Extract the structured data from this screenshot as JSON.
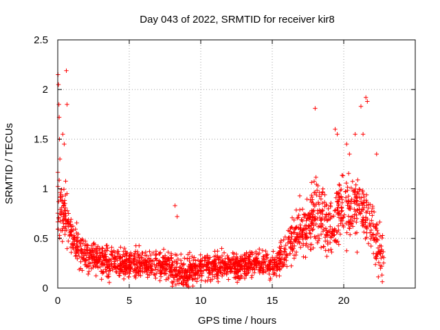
{
  "chart_data": {
    "type": "scatter",
    "title": "Day 043 of 2022, SRMTID for receiver kir8",
    "xlabel": "GPS time / hours",
    "ylabel": "SRMTID / TECUs",
    "xlim": [
      0,
      25
    ],
    "ylim": [
      0,
      2.5
    ],
    "xticks": [
      0,
      5,
      10,
      15,
      20
    ],
    "xtick_labels": [
      "0",
      "5",
      "10",
      "15",
      "20"
    ],
    "yticks": [
      0,
      0.5,
      1,
      1.5,
      2,
      2.5
    ],
    "ytick_labels": [
      "0",
      "0.5",
      "1",
      "1.5",
      "2",
      "2.5"
    ],
    "grid": true,
    "marker": "+",
    "color": "#ff0000",
    "trend": {
      "x": [
        0.0,
        0.2,
        0.5,
        0.8,
        1.0,
        1.5,
        2.0,
        3.0,
        4.0,
        5.0,
        6.0,
        7.0,
        8.0,
        9.0,
        9.5,
        10.0,
        11.0,
        12.0,
        13.0,
        14.0,
        15.0,
        15.5,
        16.0,
        16.5,
        17.0,
        17.5,
        18.0,
        18.5,
        19.0,
        19.5,
        20.0,
        20.5,
        21.0,
        21.5,
        22.0,
        22.5,
        22.8
      ],
      "y": [
        0.85,
        0.8,
        0.75,
        0.6,
        0.5,
        0.38,
        0.32,
        0.28,
        0.24,
        0.25,
        0.25,
        0.24,
        0.2,
        0.15,
        0.18,
        0.22,
        0.22,
        0.22,
        0.23,
        0.25,
        0.22,
        0.3,
        0.4,
        0.5,
        0.58,
        0.65,
        0.75,
        0.72,
        0.6,
        0.7,
        0.85,
        0.75,
        0.8,
        0.75,
        0.6,
        0.35,
        0.3
      ]
    },
    "spread": {
      "x": [
        0.0,
        0.5,
        1.0,
        2.0,
        5.0,
        8.0,
        10.0,
        15.0,
        16.0,
        17.0,
        18.0,
        19.0,
        20.0,
        21.0,
        22.0,
        22.8
      ],
      "y": [
        0.3,
        0.25,
        0.14,
        0.12,
        0.12,
        0.12,
        0.11,
        0.11,
        0.15,
        0.2,
        0.28,
        0.3,
        0.3,
        0.3,
        0.26,
        0.22
      ]
    },
    "outliers": {
      "x": [
        0.02,
        0.05,
        0.08,
        0.1,
        0.12,
        0.15,
        0.35,
        0.45,
        0.6,
        0.65,
        8.2,
        8.35,
        9.45,
        18.0,
        19.4,
        19.55,
        20.2,
        20.4,
        20.8,
        21.2,
        21.35,
        21.55,
        21.65,
        22.3
      ],
      "y": [
        2.15,
        2.05,
        1.85,
        1.72,
        1.5,
        1.3,
        1.55,
        1.45,
        2.19,
        1.85,
        0.83,
        0.72,
        0.02,
        1.81,
        1.6,
        1.55,
        1.45,
        1.35,
        1.55,
        1.83,
        1.55,
        1.92,
        1.88,
        1.35
      ]
    },
    "point_count": 2000
  }
}
